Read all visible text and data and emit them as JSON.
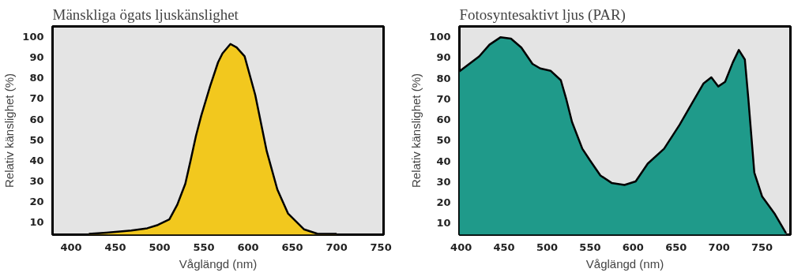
{
  "chart_data": [
    {
      "type": "area",
      "title": "Mänskliga ögats ljuskänslighet",
      "xlabel": "Våglängd (nm)",
      "ylabel": "Relativ känslighet (%)",
      "x": [
        420,
        440,
        468,
        486,
        498,
        511,
        520,
        529,
        535,
        541,
        547,
        557,
        566,
        571,
        580,
        587,
        596,
        608,
        621,
        633,
        645,
        663,
        678,
        700
      ],
      "series": [
        {
          "color": "#f2c81e",
          "values": [
            4.4,
            5,
            6,
            7.1,
            8.7,
            11.4,
            18.6,
            28.7,
            40,
            51.8,
            61.7,
            76,
            87.6,
            91.9,
            96.5,
            94.8,
            90.5,
            71.8,
            44.5,
            25.9,
            14.3,
            6.6,
            4.5,
            4.4
          ]
        }
      ],
      "xlim": [
        379,
        753
      ],
      "ylim": [
        4,
        105
      ],
      "xticks": [
        400,
        450,
        500,
        550,
        600,
        650,
        700,
        750
      ],
      "yticks": [
        10,
        20,
        30,
        40,
        50,
        60,
        70,
        80,
        90,
        100
      ]
    },
    {
      "type": "area",
      "title": "Fotosyntesaktivt ljus  (PAR)",
      "xlabel": "Våglängd (nm)",
      "ylabel": "Relativ känslighet (%)",
      "x": [
        398,
        421,
        433,
        446,
        458,
        470,
        483,
        492,
        504,
        516,
        522,
        529,
        541,
        550,
        562,
        575,
        590,
        603,
        617,
        636,
        654,
        670,
        682,
        691,
        699,
        707,
        716,
        723,
        730,
        734,
        741,
        750,
        765,
        778
      ],
      "series": [
        {
          "color": "#1f9a8a",
          "values": [
            83.3,
            90.5,
            96.2,
            99.8,
            99.1,
            94.8,
            86.9,
            84.7,
            83.6,
            79,
            70.3,
            58.8,
            45.9,
            40.2,
            33,
            29.4,
            28.4,
            30.1,
            38.7,
            45.9,
            57.4,
            68.9,
            77.5,
            80.4,
            76,
            78.2,
            87.6,
            93.6,
            89,
            70.3,
            34.4,
            22.9,
            14.3,
            5
          ]
        }
      ],
      "xlim": [
        398,
        783
      ],
      "ylim": [
        4.4,
        105
      ],
      "xticks": [
        400,
        450,
        500,
        550,
        600,
        650,
        700,
        750
      ],
      "yticks": [
        10,
        20,
        30,
        40,
        50,
        60,
        70,
        80,
        90,
        100
      ]
    }
  ]
}
